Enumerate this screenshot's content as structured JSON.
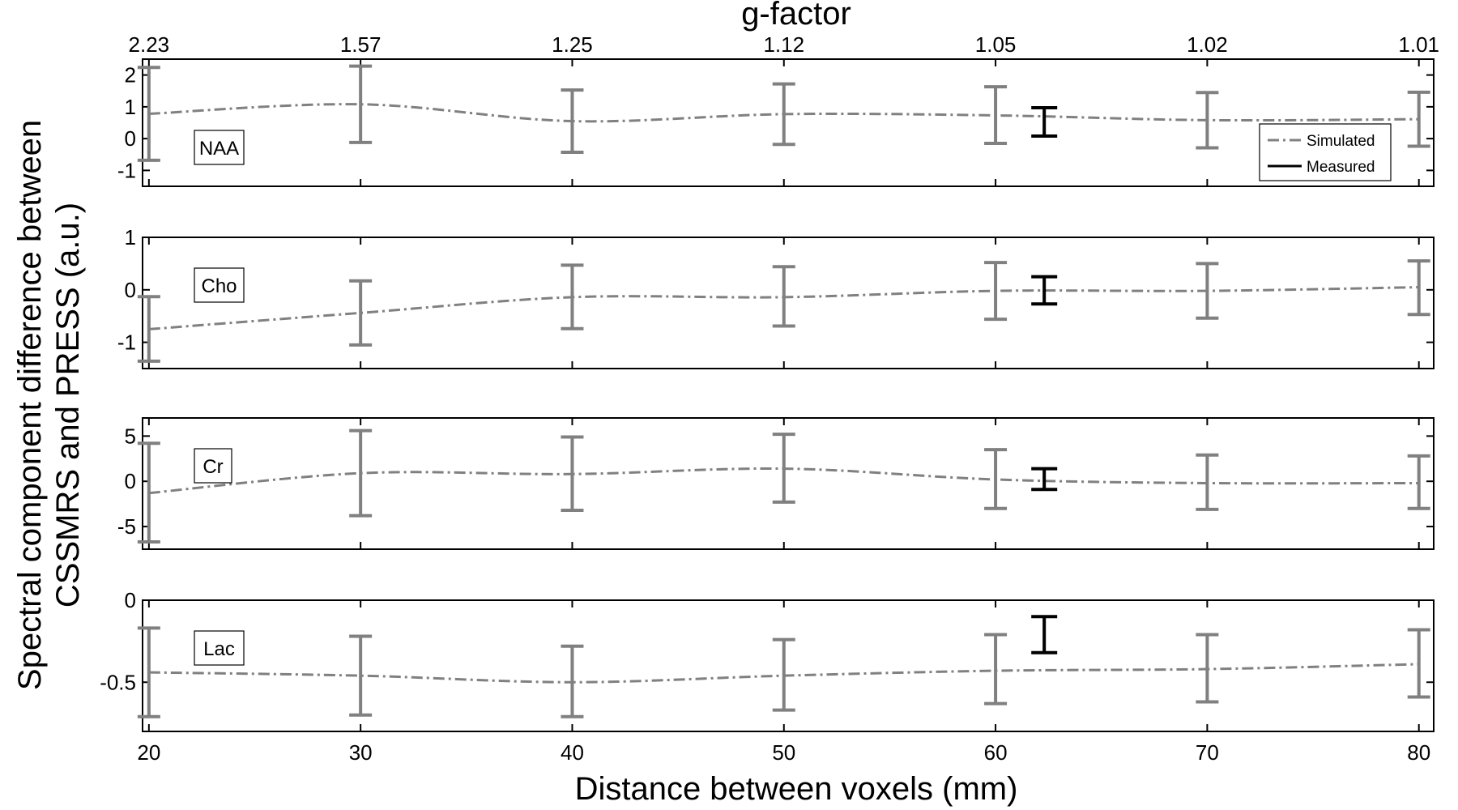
{
  "chart_data": {
    "type": "line",
    "xlabel": "Distance between voxels (mm)",
    "ylabel_lines": [
      "Spectral component difference between",
      "CSSMRS and PRESS (a.u.)"
    ],
    "top_axis": {
      "label": "g-factor",
      "tick_labels": [
        "2.23",
        "1.57",
        "1.25",
        "1.12",
        "1.05",
        "1.02",
        "1.01"
      ]
    },
    "x": [
      20,
      30,
      40,
      50,
      60,
      70,
      80
    ],
    "x_tick_labels": [
      "20",
      "30",
      "40",
      "50",
      "60",
      "70",
      "80"
    ],
    "xlim": [
      19.7,
      80.7
    ],
    "legend": {
      "position": "bottom-right of first panel",
      "entries": [
        {
          "name": "Simulated",
          "style": "dash-dot gray"
        },
        {
          "name": "Measured",
          "style": "solid black"
        }
      ]
    },
    "panels": [
      {
        "name": "NAA",
        "ylim": [
          -1.5,
          2.5
        ],
        "yticks": [
          2,
          1,
          0,
          -1
        ],
        "ytick_labels": [
          "2",
          "1",
          "0",
          "-1"
        ],
        "simulated": {
          "values": [
            0.78,
            1.08,
            0.55,
            0.77,
            0.73,
            0.58,
            0.61
          ],
          "err_low": [
            -0.68,
            -0.12,
            -0.43,
            -0.18,
            -0.15,
            -0.29,
            -0.24
          ],
          "err_high": [
            2.24,
            2.28,
            1.53,
            1.72,
            1.63,
            1.45,
            1.46
          ]
        },
        "measured": {
          "x": 62.3,
          "low": 0.08,
          "high": 0.97
        }
      },
      {
        "name": "Cho",
        "ylim": [
          -1.5,
          1.0
        ],
        "yticks": [
          1,
          0,
          -1
        ],
        "ytick_labels": [
          "1",
          "0",
          "-1"
        ],
        "simulated": {
          "values": [
            -0.75,
            -0.44,
            -0.14,
            -0.14,
            -0.02,
            -0.02,
            0.05
          ],
          "err_low": [
            -1.36,
            -1.05,
            -0.74,
            -0.69,
            -0.56,
            -0.54,
            -0.47
          ],
          "err_high": [
            -0.13,
            0.17,
            0.47,
            0.44,
            0.52,
            0.5,
            0.55
          ]
        },
        "measured": {
          "x": 62.3,
          "low": -0.27,
          "high": 0.25
        }
      },
      {
        "name": "Cr",
        "ylim": [
          -7.5,
          7.0
        ],
        "yticks": [
          5,
          0,
          -5
        ],
        "ytick_labels": [
          "5",
          "0",
          "-5"
        ],
        "simulated": {
          "values": [
            -1.3,
            0.9,
            0.8,
            1.4,
            0.2,
            -0.2,
            -0.2
          ],
          "err_low": [
            -6.7,
            -3.8,
            -3.2,
            -2.3,
            -3.0,
            -3.1,
            -3.0
          ],
          "err_high": [
            4.2,
            5.6,
            4.9,
            5.2,
            3.5,
            2.9,
            2.8
          ]
        },
        "measured": {
          "x": 62.3,
          "low": -0.9,
          "high": 1.4
        }
      },
      {
        "name": "Lac",
        "ylim": [
          -0.8,
          0.0
        ],
        "yticks": [
          0,
          -0.5
        ],
        "ytick_labels": [
          "0",
          "-0.5"
        ],
        "simulated": {
          "values": [
            -0.44,
            -0.46,
            -0.5,
            -0.46,
            -0.43,
            -0.42,
            -0.39
          ],
          "err_low": [
            -0.71,
            -0.7,
            -0.71,
            -0.67,
            -0.63,
            -0.62,
            -0.59
          ],
          "err_high": [
            -0.17,
            -0.22,
            -0.28,
            -0.24,
            -0.21,
            -0.21,
            -0.18
          ]
        },
        "measured": {
          "x": 62.3,
          "low": -0.32,
          "high": -0.1
        }
      }
    ]
  }
}
